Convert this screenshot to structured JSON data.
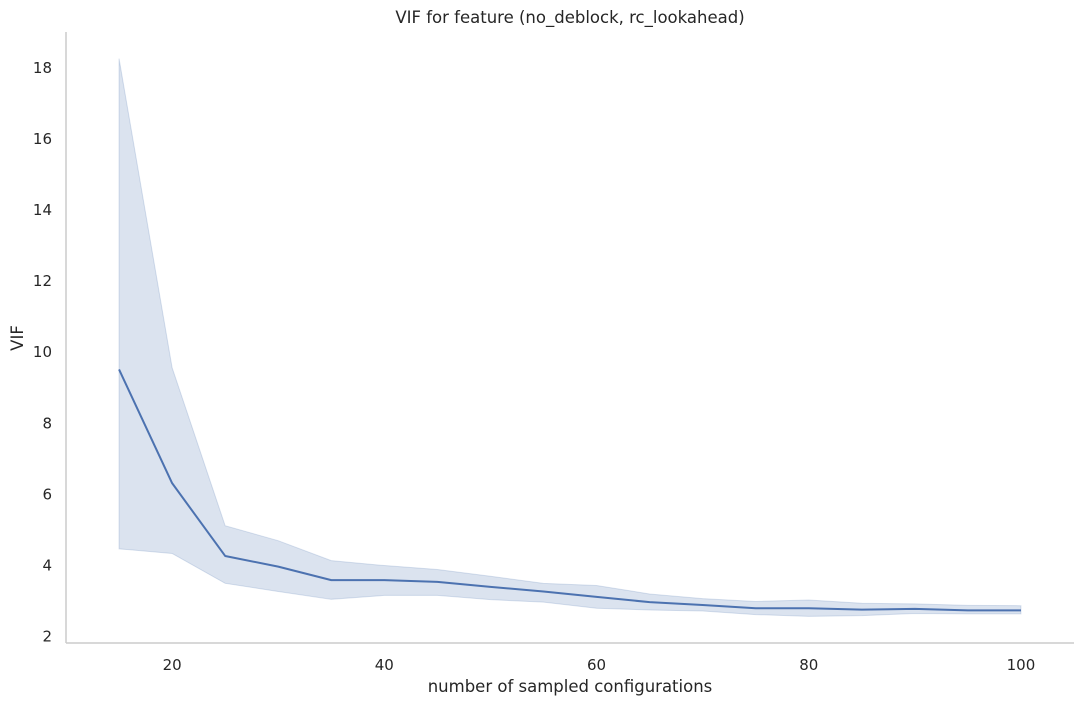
{
  "chart_data": {
    "type": "line",
    "title": "VIF for feature (no_deblock, rc_lookahead)",
    "xlabel": "number of sampled configurations",
    "ylabel": "VIF",
    "xlim": [
      10,
      105
    ],
    "ylim": [
      1.8,
      19.0
    ],
    "xticks": [
      20,
      40,
      60,
      80,
      100
    ],
    "yticks": [
      2,
      4,
      6,
      8,
      10,
      12,
      14,
      16,
      18
    ],
    "grid": false,
    "x": [
      15,
      20,
      25,
      30,
      35,
      40,
      45,
      50,
      55,
      60,
      65,
      70,
      75,
      80,
      85,
      90,
      95,
      100
    ],
    "series": [
      {
        "values": [
          9.5,
          6.3,
          4.25,
          3.95,
          3.57,
          3.57,
          3.52,
          3.38,
          3.25,
          3.1,
          2.95,
          2.87,
          2.78,
          2.78,
          2.74,
          2.76,
          2.72,
          2.72
        ],
        "ci_lower": [
          4.45,
          4.32,
          3.48,
          3.25,
          3.03,
          3.14,
          3.14,
          3.02,
          2.95,
          2.78,
          2.73,
          2.7,
          2.6,
          2.55,
          2.57,
          2.63,
          2.62,
          2.62
        ],
        "ci_upper": [
          18.25,
          9.55,
          5.1,
          4.68,
          4.12,
          3.98,
          3.87,
          3.68,
          3.48,
          3.42,
          3.18,
          3.05,
          2.97,
          3.01,
          2.92,
          2.9,
          2.86,
          2.85
        ],
        "color": "#4c72b0",
        "band_color": "#4c72b0"
      }
    ],
    "axis_color": "#cccccc",
    "text_color": "#262626"
  }
}
